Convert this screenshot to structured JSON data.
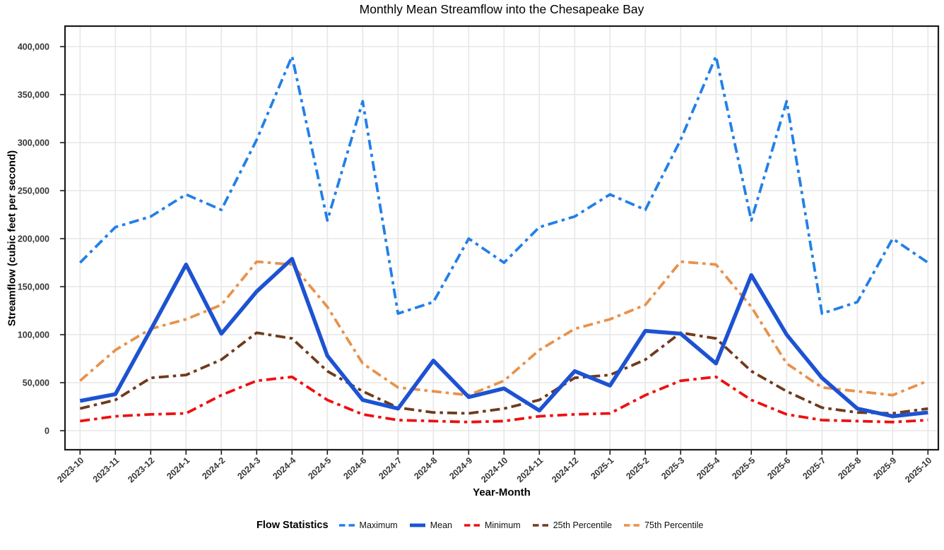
{
  "title": "Monthly Mean Streamflow into the Chesapeake Bay",
  "axes": {
    "x_label": "Year-Month",
    "y_label": "Streamflow (cubic feet per second)",
    "y_ticks": [
      0,
      50000,
      100000,
      150000,
      200000,
      250000,
      300000,
      350000,
      400000
    ]
  },
  "legend": {
    "title": "Flow Statistics",
    "items": [
      {
        "label": "Maximum",
        "series": "Maximum"
      },
      {
        "label": "Mean",
        "series": "Mean"
      },
      {
        "label": "Minimum",
        "series": "Minimum"
      },
      {
        "label": "25th Percentile",
        "series": "25th Percentile"
      },
      {
        "label": "75th Percentile",
        "series": "75th Percentile"
      }
    ]
  },
  "chart_data": {
    "type": "line",
    "title": "Monthly Mean Streamflow into the Chesapeake Bay",
    "xlabel": "Year-Month",
    "ylabel": "Streamflow (cubic feet per second)",
    "ylim": [
      0,
      420000
    ],
    "grid": true,
    "legend_position": "bottom",
    "categories": [
      "2023-10",
      "2023-11",
      "2023-12",
      "2024-1",
      "2024-2",
      "2024-3",
      "2024-4",
      "2024-5",
      "2024-6",
      "2024-7",
      "2024-8",
      "2024-9",
      "2024-10",
      "2024-11",
      "2024-12",
      "2025-1",
      "2025-2",
      "2025-3",
      "2025-4",
      "2025-5",
      "2025-6",
      "2025-7",
      "2025-8",
      "2025-9",
      "2025-10"
    ],
    "series": [
      {
        "name": "Maximum",
        "color": "#2280e8",
        "style": "dashed",
        "width": 3.8,
        "values": [
          175000,
          212000,
          223000,
          246000,
          230000,
          303000,
          390000,
          219000,
          343000,
          122000,
          134000,
          200000,
          175000,
          212000,
          223000,
          246000,
          230000,
          303000,
          390000,
          219000,
          343000,
          122000,
          134000,
          200000,
          175000
        ]
      },
      {
        "name": "75th Percentile",
        "color": "#e8924a",
        "style": "dashed",
        "width": 3.8,
        "values": [
          52000,
          84000,
          106000,
          116000,
          131000,
          176000,
          173000,
          129000,
          70000,
          45000,
          41000,
          37000,
          52000,
          84000,
          106000,
          116000,
          131000,
          176000,
          173000,
          129000,
          70000,
          45000,
          41000,
          37000,
          52000
        ]
      },
      {
        "name": "25th Percentile",
        "color": "#6f3a1c",
        "style": "dashed",
        "width": 3.8,
        "values": [
          23000,
          32000,
          55000,
          58000,
          74000,
          102000,
          96000,
          62000,
          41000,
          24000,
          19000,
          18000,
          23000,
          32000,
          55000,
          58000,
          74000,
          102000,
          96000,
          62000,
          41000,
          24000,
          19000,
          18000,
          23000
        ]
      },
      {
        "name": "Minimum",
        "color": "#ee1010",
        "style": "dashed",
        "width": 3.8,
        "values": [
          10000,
          15000,
          17000,
          18000,
          37000,
          52000,
          56000,
          32000,
          17000,
          11000,
          10000,
          9000,
          10000,
          15000,
          17000,
          18000,
          37000,
          52000,
          56000,
          32000,
          17000,
          11000,
          10000,
          9000,
          11000
        ]
      },
      {
        "name": "Mean",
        "color": "#1d52d2",
        "style": "solid",
        "width": 5.5,
        "values": [
          31000,
          38000,
          105000,
          173000,
          101000,
          145000,
          179000,
          78000,
          32000,
          23000,
          73000,
          35000,
          44000,
          21000,
          62000,
          47000,
          104000,
          101000,
          70000,
          162000,
          100000,
          55000,
          23000,
          15000,
          19000
        ]
      }
    ]
  }
}
